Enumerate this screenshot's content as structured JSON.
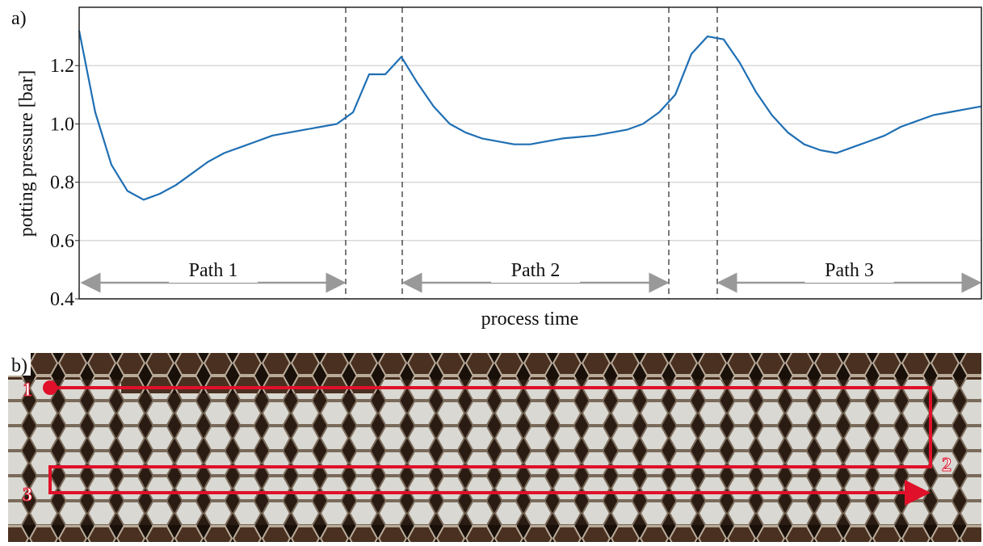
{
  "chart_data": {
    "type": "line",
    "panel_label": "a)",
    "ylabel": "potting pressure [bar]",
    "xlabel": "process time",
    "color": "#1f6fb4",
    "values": [
      1.32,
      1.04,
      0.86,
      0.77,
      0.74,
      0.76,
      0.79,
      0.83,
      0.87,
      0.9,
      0.92,
      0.94,
      0.96,
      0.97,
      0.98,
      0.99,
      1.0,
      1.04,
      1.17,
      1.17,
      1.23,
      1.14,
      1.06,
      1.0,
      0.97,
      0.95,
      0.94,
      0.93,
      0.93,
      0.94,
      0.95,
      0.955,
      0.96,
      0.97,
      0.98,
      1.0,
      1.04,
      1.1,
      1.24,
      1.3,
      1.29,
      1.21,
      1.11,
      1.03,
      0.97,
      0.93,
      0.91,
      0.9,
      0.92,
      0.94,
      0.96,
      0.99,
      1.01,
      1.03,
      1.04,
      1.05,
      1.06
    ],
    "ylim": [
      0.4,
      1.4
    ],
    "yticks": [
      0.4,
      0.6,
      0.8,
      {
        "value": 1,
        "label": "1.0"
      },
      1.2
    ],
    "grid": true,
    "annotations": [
      "Path 1",
      "Path 2",
      "Path 3"
    ]
  },
  "panel_b": {
    "label": "b)",
    "markers": [
      "1",
      "2",
      "3"
    ]
  }
}
